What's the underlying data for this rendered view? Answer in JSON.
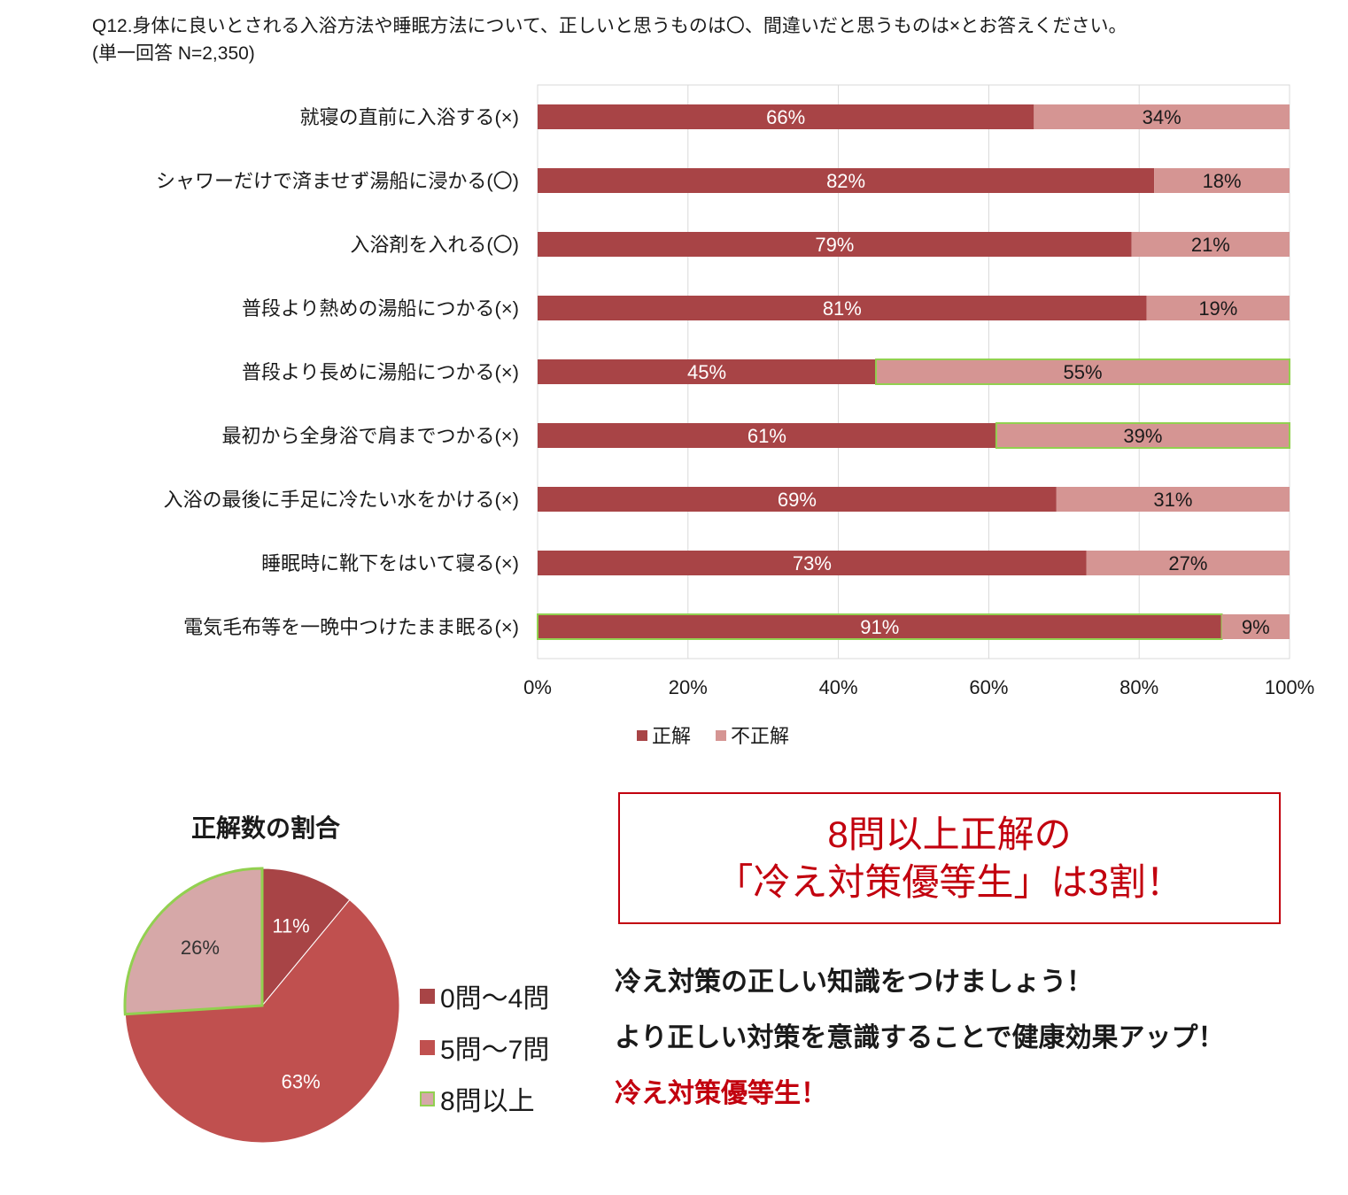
{
  "question": {
    "line1": "Q12.身体に良いとされる入浴方法や睡眠方法について、正しいと思うものは〇、間違いだと思うものは×とお答えください。",
    "line2": "(単一回答 N=2,350)"
  },
  "colors": {
    "correct": "#a84446",
    "incorrect": "#d59593",
    "pie_0_4": "#a84446",
    "pie_5_7": "#c0504f",
    "pie_8plus": "#d6a8a8",
    "highlight_border": "#92d050",
    "accent_red": "#c2000e"
  },
  "chart_data": [
    {
      "type": "bar",
      "orientation": "horizontal",
      "stacked": true,
      "categories": [
        "就寝の直前に入浴する(×)",
        "シャワーだけで済ませず湯船に浸かる(〇)",
        "入浴剤を入れる(〇)",
        "普段より熱めの湯船につかる(×)",
        "普段より長めに湯船につかる(×)",
        "最初から全身浴で肩までつかる(×)",
        "入浴の最後に手足に冷たい水をかける(×)",
        "睡眠時に靴下をはいて寝る(×)",
        "電気毛布等を一晩中つけたまま眠る(×)"
      ],
      "series": [
        {
          "name": "正解",
          "values": [
            66,
            82,
            79,
            81,
            45,
            61,
            69,
            73,
            91
          ]
        },
        {
          "name": "不正解",
          "values": [
            34,
            18,
            21,
            19,
            55,
            39,
            31,
            27,
            9
          ]
        }
      ],
      "highlighted": [
        {
          "category_index": 4,
          "series_index": 1
        },
        {
          "category_index": 5,
          "series_index": 1
        },
        {
          "category_index": 8,
          "series_index": 0
        }
      ],
      "xlim": [
        0,
        100
      ],
      "xticks": [
        "0%",
        "20%",
        "40%",
        "60%",
        "80%",
        "100%"
      ],
      "value_suffix": "%",
      "grid": true,
      "legend": "bottom-center"
    },
    {
      "type": "pie",
      "title": "正解数の割合",
      "labels": [
        "0問～4問",
        "5問～7問",
        "8問以上"
      ],
      "values": [
        11,
        63,
        26
      ],
      "value_suffix": "%",
      "highlighted_index": 2,
      "legend": "right"
    }
  ],
  "callout": {
    "line1": "8問以上正解の",
    "line2": "「冷え対策優等生」は3割！"
  },
  "messages": {
    "line1": "冷え対策の正しい知識をつけましょう！",
    "line2": "より正しい対策を意識することで健康効果アップ！",
    "line3": "冷え対策優等生！"
  }
}
